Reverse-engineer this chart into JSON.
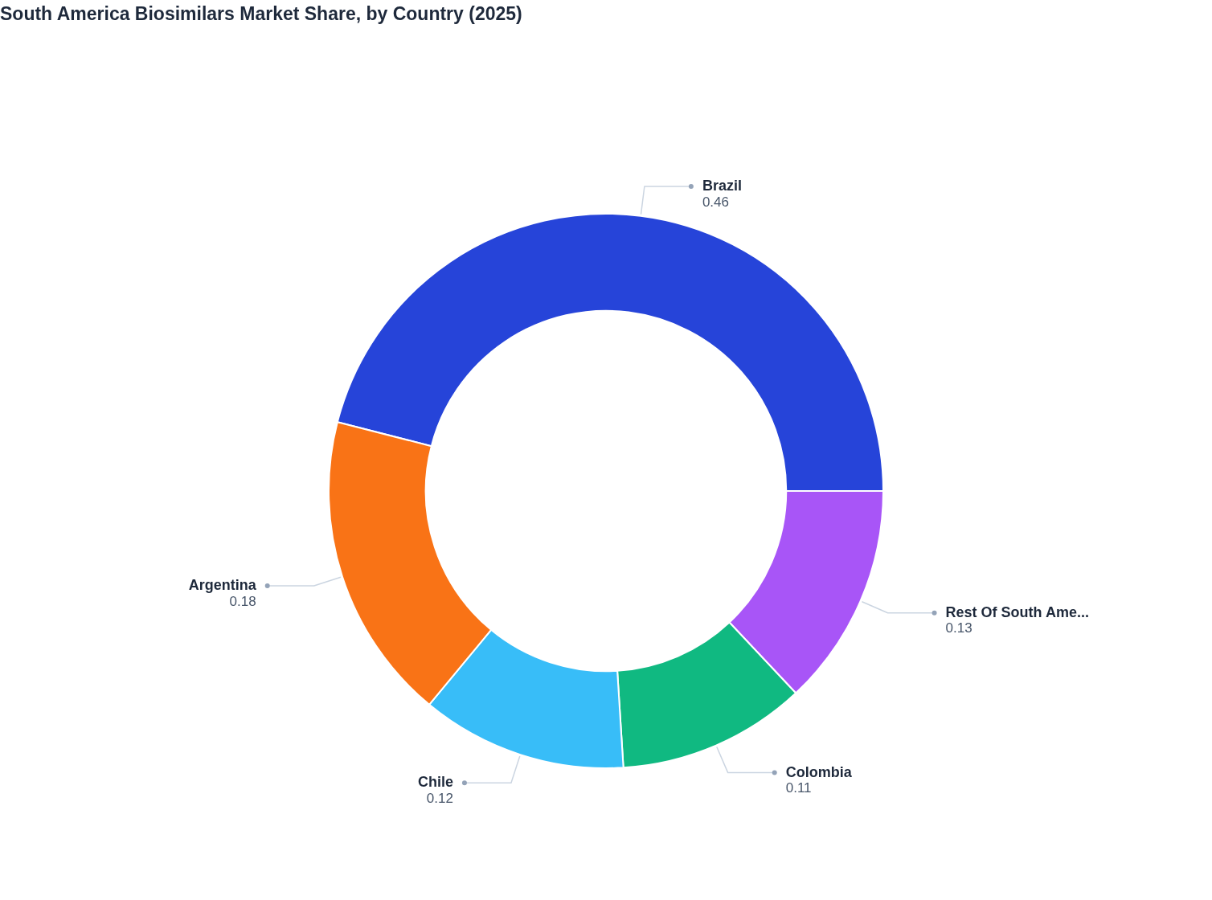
{
  "chart_data": {
    "type": "donut",
    "title": "South America Biosimilars Market Share, by Country (2025)",
    "categories": [
      "Brazil",
      "Rest Of South Ame...",
      "Colombia",
      "Chile",
      "Argentina"
    ],
    "values": [
      0.46,
      0.13,
      0.11,
      0.12,
      0.18
    ],
    "colors": [
      "#2644d9",
      "#a855f7",
      "#10b981",
      "#38bdf8",
      "#f97316"
    ],
    "data_labels": true
  }
}
